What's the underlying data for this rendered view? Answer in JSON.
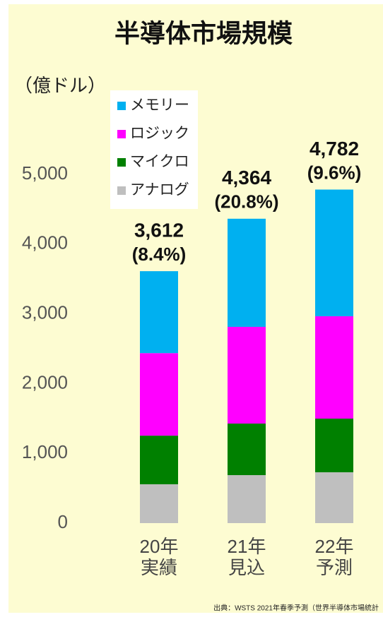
{
  "chart_data": {
    "type": "stacked_bar",
    "title": "半導体市場規模",
    "y_axis_label": "（億ドル）",
    "categories": [
      [
        "20年",
        "実績"
      ],
      [
        "21年",
        "見込"
      ],
      [
        "22年",
        "予測"
      ]
    ],
    "series": [
      {
        "name": "アナログ",
        "color": "#bfbfbf",
        "values": [
          557,
          688,
          729
        ]
      },
      {
        "name": "マイクロ",
        "color": "#008000",
        "values": [
          697,
          739,
          769
        ]
      },
      {
        "name": "ロジック",
        "color": "#ff00ff",
        "values": [
          1183,
          1387,
          1468
        ]
      },
      {
        "name": "メモリー",
        "color": "#00b0f0",
        "values": [
          1175,
          1550,
          1816
        ]
      }
    ],
    "totals": [
      3612,
      4364,
      4782
    ],
    "total_labels": [
      "3,612",
      "4,364",
      "4,782"
    ],
    "growth": [
      8.4,
      20.8,
      9.6
    ],
    "growth_labels": [
      "(8.4%)",
      "(20.8%)",
      "(9.6%)"
    ],
    "ylim": [
      0,
      5000
    ],
    "yticks": [
      0,
      {
        "value": 1000,
        "label": "1,000"
      },
      {
        "value": 2000,
        "label": "2,000"
      },
      {
        "value": 3000,
        "label": "3,000"
      },
      {
        "value": 4000,
        "label": "4,000"
      },
      {
        "value": 5000,
        "label": "5,000"
      }
    ],
    "source": "出典：WSTS 2021年春季予測（世界半導体市場統計"
  }
}
